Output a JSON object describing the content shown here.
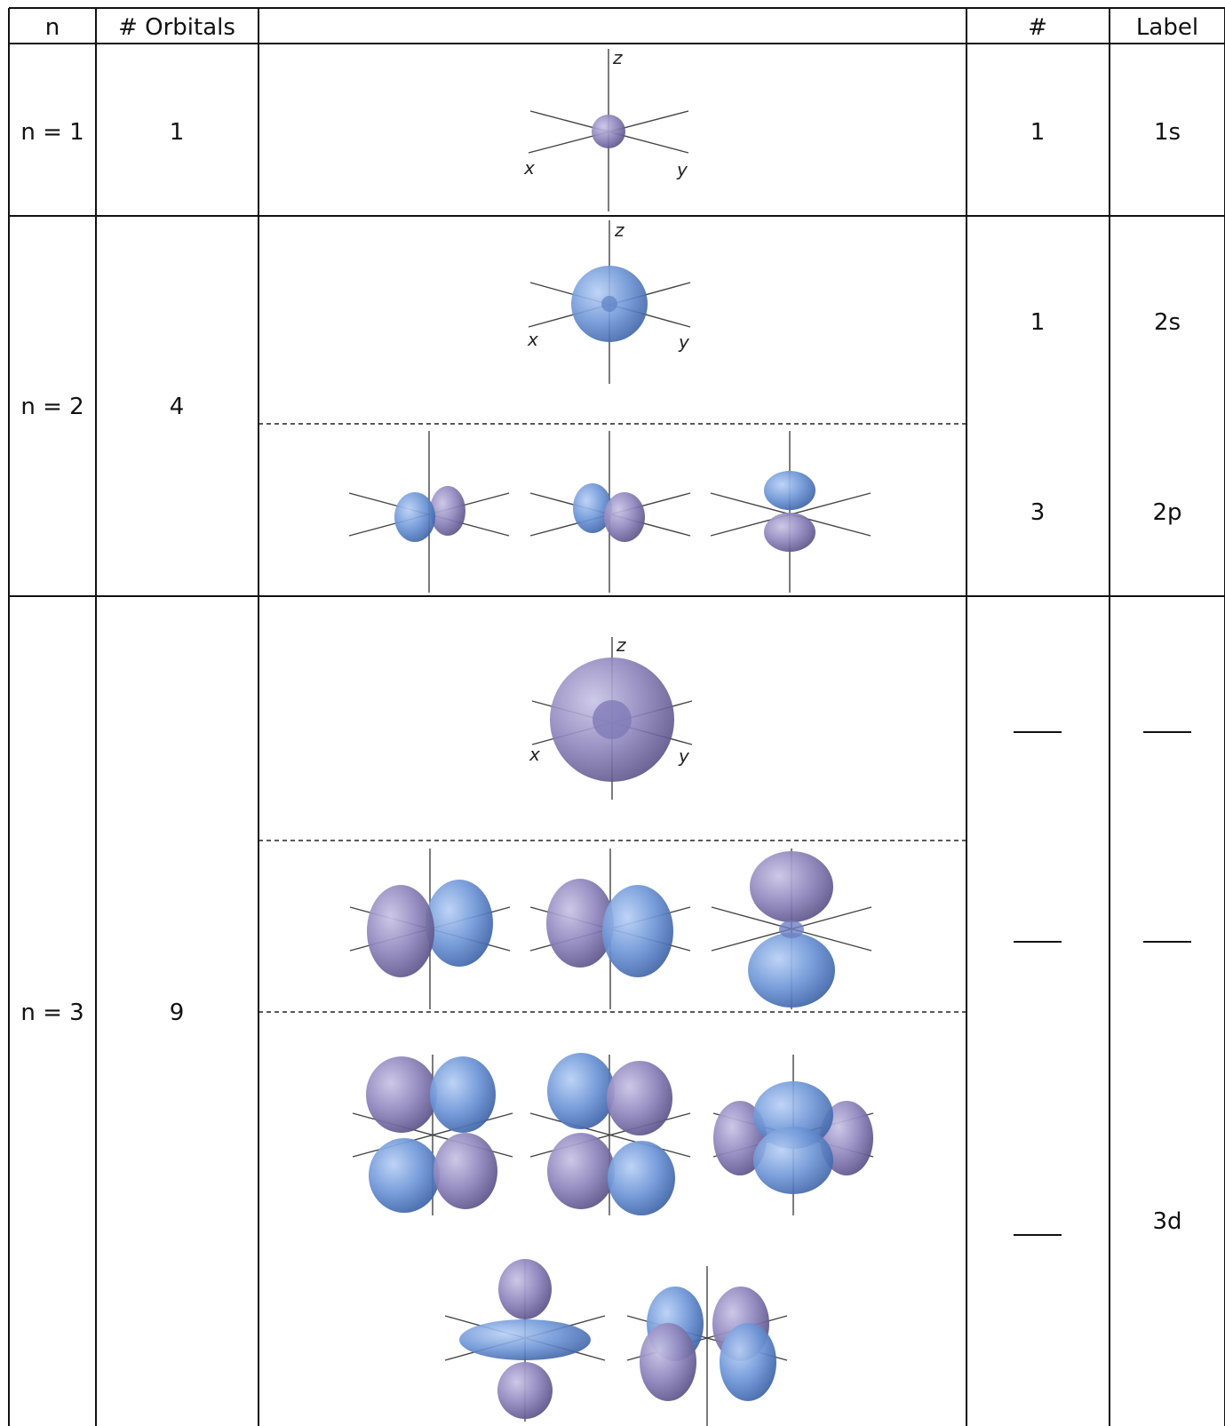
{
  "header": {
    "n": "n",
    "orbitals": "# Orbitals",
    "count": "#",
    "label": "Label"
  },
  "rows": [
    {
      "n": "n = 1",
      "orbitals": "1"
    },
    {
      "n": "n = 2",
      "orbitals": "4"
    },
    {
      "n": "n = 3",
      "orbitals": "9"
    }
  ],
  "subshells": [
    {
      "count": "1",
      "label": "1s"
    },
    {
      "count": "1",
      "label": "2s"
    },
    {
      "count": "3",
      "label": "2p"
    },
    {
      "count": "",
      "label": ""
    },
    {
      "count": "",
      "label": ""
    },
    {
      "count": "",
      "label": "3d"
    }
  ],
  "axes": {
    "x": "x",
    "y": "y",
    "z": "z"
  },
  "colors": {
    "lobe_blue": "#6f97d8",
    "lobe_purple": "#8f86bd",
    "grid": "#111111"
  }
}
